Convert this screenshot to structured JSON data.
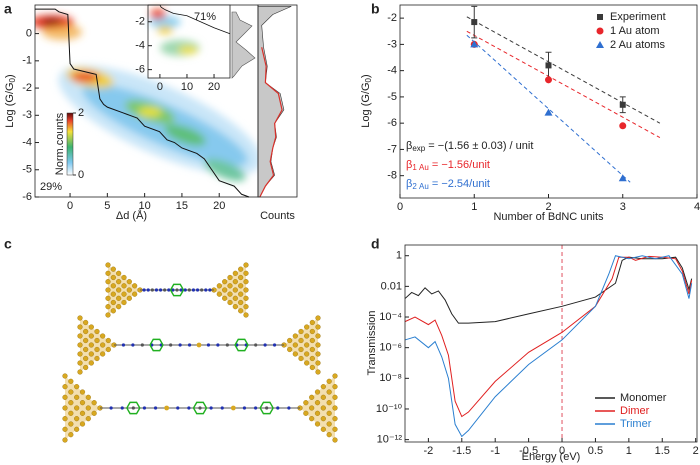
{
  "chart_data": [
    {
      "type": "histogram2d",
      "panel": "a",
      "xlabel": "Δd (Å)",
      "ylabel": [
        "Log (G/G",
        "0",
        ")"
      ],
      "xlim": [
        -4.7,
        25.2
      ],
      "ylim": [
        -6,
        1.05
      ],
      "xticks": [
        0,
        5,
        10,
        15,
        20
      ],
      "yticks": [
        -6,
        -5,
        -4,
        -3,
        -2,
        -1,
        0
      ],
      "note": "29%",
      "trace": {
        "color": "#111111",
        "x": [
          -4.7,
          -2,
          -1.5,
          -0.3,
          0,
          0.5,
          3.5,
          4,
          4.5,
          5,
          7,
          8,
          9,
          10,
          12,
          13,
          14,
          15,
          17,
          18,
          19,
          20,
          22,
          23,
          24
        ],
        "values": [
          0.9,
          0.9,
          0.8,
          0.7,
          -1.1,
          -1.3,
          -1.5,
          -2.4,
          -2.6,
          -2.7,
          -2.9,
          -3.0,
          -3.1,
          -3.4,
          -3.6,
          -3.9,
          -4.0,
          -4.2,
          -4.4,
          -4.6,
          -5.0,
          -5.4,
          -5.6,
          -5.9,
          -6
        ]
      },
      "colorbar": {
        "label": "Norm.counts",
        "clim": [
          0,
          2
        ],
        "ticks": [
          0,
          2
        ]
      },
      "inset": {
        "note": "71%",
        "xlim": [
          -4.4,
          25.9
        ],
        "ylim": [
          -6.7,
          -0.6
        ],
        "xticks": [
          0,
          10,
          20
        ],
        "yticks": [
          -6,
          -4,
          -2
        ],
        "x": [
          -4.4,
          0,
          0.5,
          2,
          5,
          10,
          15,
          20,
          25.9
        ],
        "values": [
          -0.6,
          -0.6,
          -0.8,
          -1.0,
          -1.3,
          -1.5,
          -2.0,
          -2.5,
          -3.0
        ]
      },
      "counts": {
        "label": "Counts",
        "fill": "#c8c8c8",
        "fit_color": "#d8302a",
        "y": [
          1.0,
          0.7,
          0.3,
          -0.5,
          -1.2,
          -1.8,
          -2.2,
          -2.8,
          -3.3,
          -3.8,
          -4.2,
          -4.7,
          -5.2,
          -5.6,
          -6
        ],
        "values": [
          0.9,
          0.4,
          0.1,
          0.15,
          0.25,
          0.2,
          0.6,
          0.7,
          0.45,
          0.5,
          0.4,
          0.35,
          0.45,
          0.2,
          0.05
        ],
        "fit": [
          null,
          null,
          null,
          0.1,
          0.22,
          0.2,
          0.55,
          0.65,
          0.45,
          0.48,
          0.4,
          0.33,
          0.42,
          0.2,
          0.05
        ]
      }
    },
    {
      "type": "scatter",
      "panel": "b",
      "xlabel": "Number of BdNC units",
      "ylabel": [
        "Log (G/G",
        "0",
        ")"
      ],
      "xlim": [
        0,
        4
      ],
      "ylim": [
        -8.85,
        -1.5
      ],
      "xticks": [
        0,
        1,
        2,
        3,
        4
      ],
      "yticks": [
        -8,
        -7,
        -6,
        -5,
        -4,
        -3,
        -2
      ],
      "legend": "upper right",
      "x": [
        1,
        2,
        3
      ],
      "series": [
        {
          "name": "Experiment",
          "color": "#3a3a3a",
          "marker": "square",
          "values": [
            -2.15,
            -3.8,
            -5.3
          ],
          "errors": [
            0.6,
            0.5,
            0.3
          ]
        },
        {
          "name": "1 Au atom",
          "color": "#e8262b",
          "marker": "circle",
          "values": [
            -3.0,
            -4.35,
            -6.1
          ]
        },
        {
          "name": "2 Au atoms",
          "color": "#2f6fd0",
          "marker": "triangle",
          "values": [
            -3.0,
            -5.6,
            -8.1
          ]
        }
      ],
      "fits": [
        {
          "color": "#3a3a3a",
          "x": [
            0.9,
            3.5
          ],
          "values": [
            -1.95,
            -6.0
          ]
        },
        {
          "color": "#e8262b",
          "x": [
            0.9,
            3.5
          ],
          "values": [
            -2.5,
            -6.55
          ]
        },
        {
          "color": "#2f6fd0",
          "x": [
            0.9,
            3.1
          ],
          "values": [
            -2.65,
            -8.25
          ]
        }
      ],
      "annotations": [
        {
          "color": "#222222",
          "parts": [
            "β",
            "exp",
            " = −(1.56 ± 0.03) / unit"
          ]
        },
        {
          "color": "#e8262b",
          "parts": [
            "β",
            "1 Au",
            " = −1.56/unit"
          ]
        },
        {
          "color": "#2f6fd0",
          "parts": [
            "β",
            "2 Au",
            " = −2.54/unit"
          ]
        }
      ]
    },
    {
      "type": "illustration",
      "panel": "c"
    },
    {
      "type": "line",
      "panel": "d",
      "xlabel": "Energy (eV)",
      "ylabel": "Transmission",
      "log_y": true,
      "xlim": [
        -2.35,
        2.02
      ],
      "ylim": [
        7e-13,
        5
      ],
      "xticks": [
        -2,
        -1.5,
        -1,
        -0.5,
        0,
        0.5,
        1,
        1.5,
        2
      ],
      "yticks": [
        {
          "value": 1e-12,
          "label": "10⁻¹²"
        },
        {
          "value": 1e-10,
          "label": "10⁻¹⁰"
        },
        {
          "value": 1e-08,
          "label": "10⁻⁸"
        },
        {
          "value": 1e-06,
          "label": "10⁻⁶"
        },
        {
          "value": 0.0001,
          "label": "10⁻⁴"
        },
        0.01,
        1
      ],
      "vline": 0,
      "vline_color": "#e05060",
      "legend": "lower right",
      "series": [
        {
          "name": "Monomer",
          "color": "#222222",
          "x": [
            -2.35,
            -2.25,
            -2.15,
            -2.05,
            -1.95,
            -1.85,
            -1.75,
            -1.65,
            -1.55,
            -1.4,
            -1.0,
            -0.5,
            0,
            0.5,
            0.8,
            0.9,
            1.0,
            1.2,
            1.5,
            1.7,
            1.8,
            1.9,
            1.94
          ],
          "values": [
            0.0016,
            0.004,
            0.0025,
            0.008,
            0.0032,
            0.005,
            0.0013,
            0.00016,
            4e-05,
            4e-05,
            5e-05,
            0.00016,
            0.0005,
            0.002,
            0.016,
            0.5,
            0.8,
            0.63,
            0.63,
            0.8,
            0.16,
            0.0063,
            0.032
          ]
        },
        {
          "name": "Dimer",
          "color": "#e02020",
          "x": [
            -2.35,
            -2.2,
            -2.0,
            -1.9,
            -1.8,
            -1.7,
            -1.6,
            -1.5,
            -1.4,
            -1.0,
            -0.5,
            0,
            0.5,
            0.75,
            0.85,
            1.0,
            1.1,
            1.3,
            1.5,
            1.7,
            1.8,
            1.9,
            1.94
          ],
          "values": [
            5e-05,
            0.0001,
            3.2e-05,
            6.3e-05,
            6.3e-06,
            3.2e-07,
            3.2e-10,
            3.2e-11,
            6.3e-11,
            6.3e-09,
            5e-07,
            1e-05,
            0.0005,
            0.032,
            0.8,
            0.8,
            0.5,
            0.9,
            0.8,
            0.63,
            0.1,
            0.0032,
            0.025
          ]
        },
        {
          "name": "Trimer",
          "color": "#2a7fd0",
          "x": [
            -2.35,
            -2.2,
            -2.0,
            -1.9,
            -1.8,
            -1.7,
            -1.6,
            -1.5,
            -1.4,
            -1.0,
            -0.5,
            0,
            0.5,
            0.7,
            0.8,
            1.0,
            1.2,
            1.4,
            1.6,
            1.8,
            1.9,
            1.94
          ],
          "values": [
            3.2e-06,
            5e-06,
            1e-06,
            2.5e-06,
            2.5e-07,
            1e-08,
            1e-11,
            1.6e-12,
            4e-12,
            6.3e-10,
            8e-08,
            3.2e-06,
            0.0005,
            0.063,
            1,
            0.63,
            1,
            0.63,
            1,
            0.063,
            0.0016,
            0.016
          ]
        }
      ]
    }
  ]
}
